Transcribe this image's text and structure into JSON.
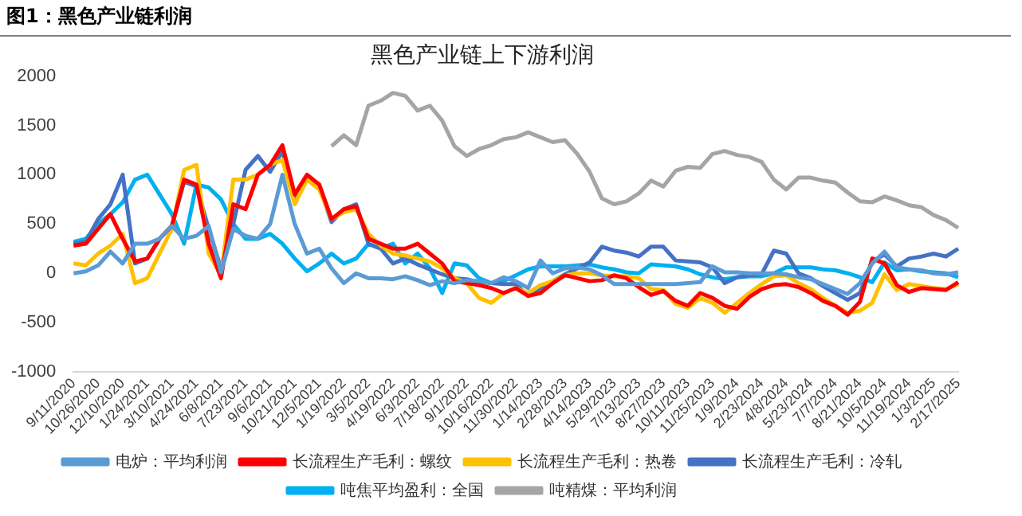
{
  "chart_data": {
    "type": "line",
    "title": "黑色产业链上下游利润",
    "annotations": [
      "图1：黑色产业链利润"
    ],
    "categories": [
      "9/11/2020",
      null,
      "10/26/2020",
      null,
      "12/10/2020",
      null,
      "1/24/2021",
      null,
      "3/10/2021",
      null,
      "4/24/2021",
      null,
      "6/8/2021",
      null,
      "7/23/2021",
      null,
      "9/6/2021",
      null,
      "10/21/2021",
      null,
      "12/5/2021",
      null,
      "1/19/2022",
      null,
      "3/5/2022",
      null,
      "4/19/2022",
      null,
      "6/3/2022",
      null,
      "7/18/2022",
      null,
      "9/1/2022",
      null,
      "10/16/2022",
      null,
      "11/30/2022",
      null,
      "1/14/2023",
      null,
      "2/28/2023",
      null,
      "4/14/2023",
      null,
      "5/29/2023",
      null,
      "7/13/2023",
      null,
      "8/27/2023",
      null,
      "10/11/2023",
      null,
      "11/25/2023",
      null,
      "1/9/2024",
      null,
      "2/23/2024",
      null,
      "4/8/2024",
      null,
      "5/23/2024",
      null,
      "7/7/2024",
      null,
      "8/21/2024",
      null,
      "10/5/2024",
      null,
      "11/19/2024",
      null,
      "1/3/2025",
      null,
      "2/17/2025"
    ],
    "series": [
      {
        "name": "电炉：平均利润",
        "color": "#5b9bd5",
        "values": [
          0,
          20,
          80,
          220,
          100,
          300,
          300,
          350,
          480,
          350,
          380,
          480,
          10,
          450,
          380,
          350,
          500,
          1000,
          500,
          200,
          250,
          50,
          -100,
          0,
          -50,
          -50,
          -60,
          -30,
          -70,
          -120,
          -80,
          -100,
          -70,
          -80,
          -100,
          -40,
          -80,
          -150,
          130,
          0,
          50,
          60,
          40,
          -20,
          -110,
          -110,
          -110,
          -110,
          -110,
          -110,
          -100,
          -90,
          70,
          10,
          10,
          0,
          0,
          0,
          -10,
          -40,
          -60,
          -110,
          -160,
          -210,
          -100,
          100,
          220,
          60,
          40,
          30,
          0,
          -10,
          10
        ]
      },
      {
        "name": "长流程生产毛利：螺纹",
        "color": "#ff0000",
        "values": [
          280,
          300,
          450,
          600,
          350,
          120,
          150,
          350,
          480,
          950,
          900,
          300,
          -50,
          700,
          650,
          1000,
          1100,
          1300,
          800,
          1000,
          900,
          550,
          650,
          680,
          350,
          300,
          250,
          250,
          300,
          200,
          100,
          -80,
          -100,
          -120,
          -150,
          -200,
          -150,
          -230,
          -200,
          -100,
          -20,
          -50,
          -80,
          -70,
          -20,
          -50,
          -140,
          -220,
          -180,
          -280,
          -330,
          -200,
          -250,
          -330,
          -360,
          -240,
          -160,
          -120,
          -110,
          -140,
          -200,
          -280,
          -330,
          -420,
          -290,
          150,
          100,
          -120,
          -190,
          -150,
          -160,
          -170,
          -90
        ]
      },
      {
        "name": "长流程生产毛利：热卷",
        "color": "#ffc000",
        "values": [
          100,
          80,
          200,
          280,
          400,
          -100,
          -50,
          200,
          450,
          1050,
          1100,
          200,
          -20,
          950,
          950,
          1000,
          1100,
          1150,
          700,
          950,
          850,
          550,
          620,
          650,
          400,
          280,
          200,
          180,
          150,
          120,
          50,
          -50,
          -100,
          -250,
          -300,
          -200,
          -150,
          -200,
          -120,
          -80,
          -20,
          0,
          0,
          -20,
          -30,
          -30,
          -50,
          -160,
          -170,
          -310,
          -350,
          -250,
          -300,
          -400,
          -300,
          -200,
          -110,
          -30,
          -20,
          -100,
          -160,
          -250,
          -330,
          -400,
          -380,
          -300,
          -10,
          -170,
          -110,
          -130,
          -150,
          -160,
          -110
        ]
      },
      {
        "name": "长流程生产毛利：冷轧",
        "color": "#4472c4",
        "values": [
          300,
          320,
          550,
          700,
          1000,
          100,
          150,
          350,
          480,
          930,
          880,
          450,
          50,
          500,
          1050,
          1190,
          1030,
          1240,
          770,
          950,
          880,
          520,
          650,
          700,
          300,
          250,
          100,
          150,
          90,
          40,
          -10,
          -50,
          -60,
          -90,
          -100,
          -110,
          -110,
          -230,
          -150,
          -80,
          -10,
          50,
          110,
          270,
          230,
          210,
          170,
          270,
          270,
          130,
          120,
          110,
          60,
          -100,
          -40,
          -20,
          -10,
          230,
          200,
          0,
          -50,
          -130,
          -200,
          -270,
          -200,
          120,
          190,
          70,
          150,
          170,
          200,
          170,
          250
        ]
      },
      {
        "name": "吨焦平均盈利：全国",
        "color": "#00b0f0",
        "values": [
          320,
          350,
          500,
          600,
          720,
          950,
          1000,
          800,
          600,
          300,
          900,
          870,
          750,
          500,
          350,
          350,
          400,
          300,
          150,
          20,
          100,
          200,
          100,
          150,
          300,
          250,
          300,
          100,
          200,
          50,
          -200,
          100,
          80,
          -50,
          -100,
          -80,
          -20,
          40,
          70,
          70,
          70,
          80,
          90,
          60,
          40,
          10,
          0,
          90,
          80,
          70,
          40,
          -10,
          -40,
          -60,
          -40,
          -30,
          -30,
          0,
          60,
          60,
          60,
          40,
          30,
          0,
          -40,
          -90,
          110,
          30,
          40,
          20,
          10,
          0,
          -40
        ]
      },
      {
        "name": "吨精煤：平均利润",
        "color": "#a5a5a5",
        "values": [
          null,
          null,
          null,
          null,
          null,
          null,
          null,
          null,
          null,
          null,
          null,
          null,
          null,
          null,
          null,
          null,
          null,
          null,
          null,
          null,
          null,
          1290,
          1400,
          1300,
          1700,
          1750,
          1830,
          1800,
          1650,
          1700,
          1550,
          1290,
          1190,
          1260,
          1300,
          1360,
          1380,
          1430,
          1380,
          1330,
          1350,
          1210,
          1030,
          760,
          700,
          730,
          810,
          940,
          880,
          1040,
          1080,
          1070,
          1210,
          1240,
          1200,
          1180,
          1130,
          950,
          850,
          970,
          970,
          940,
          920,
          820,
          730,
          720,
          780,
          740,
          690,
          670,
          590,
          540,
          460
        ]
      }
    ],
    "ylim": [
      -1000,
      2000
    ],
    "yticks": [
      -1000,
      -500,
      0,
      500,
      1000,
      1500,
      2000
    ],
    "legend": "bottom"
  }
}
